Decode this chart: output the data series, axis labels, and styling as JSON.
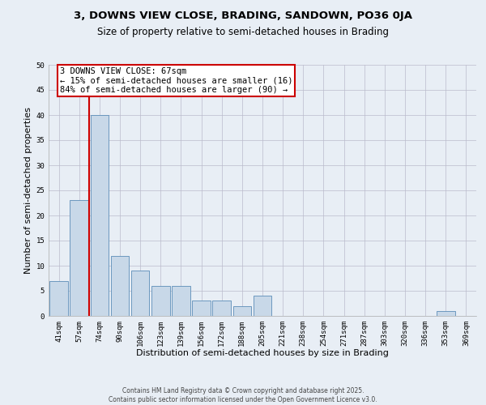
{
  "title1": "3, DOWNS VIEW CLOSE, BRADING, SANDOWN, PO36 0JA",
  "title2": "Size of property relative to semi-detached houses in Brading",
  "xlabel": "Distribution of semi-detached houses by size in Brading",
  "ylabel": "Number of semi-detached properties",
  "categories": [
    "41sqm",
    "57sqm",
    "74sqm",
    "90sqm",
    "106sqm",
    "123sqm",
    "139sqm",
    "156sqm",
    "172sqm",
    "188sqm",
    "205sqm",
    "221sqm",
    "238sqm",
    "254sqm",
    "271sqm",
    "287sqm",
    "303sqm",
    "320sqm",
    "336sqm",
    "353sqm",
    "369sqm"
  ],
  "values": [
    7,
    23,
    40,
    12,
    9,
    6,
    6,
    3,
    3,
    2,
    4,
    0,
    0,
    0,
    0,
    0,
    0,
    0,
    0,
    1,
    0
  ],
  "bar_color": "#c8d8e8",
  "bar_edge_color": "#5b8db8",
  "bar_width": 0.9,
  "red_line_x": 1.5,
  "annotation_title": "3 DOWNS VIEW CLOSE: 67sqm",
  "annotation_line1": "← 15% of semi-detached houses are smaller (16)",
  "annotation_line2": "84% of semi-detached houses are larger (90) →",
  "annotation_box_color": "#ffffff",
  "annotation_box_edge": "#cc0000",
  "red_line_color": "#cc0000",
  "ylim": [
    0,
    50
  ],
  "yticks": [
    0,
    5,
    10,
    15,
    20,
    25,
    30,
    35,
    40,
    45,
    50
  ],
  "grid_color": "#bbbbcc",
  "bg_color": "#e8eef5",
  "footer1": "Contains HM Land Registry data © Crown copyright and database right 2025.",
  "footer2": "Contains public sector information licensed under the Open Government Licence v3.0.",
  "title1_fontsize": 9.5,
  "title2_fontsize": 8.5,
  "tick_fontsize": 6.5,
  "label_fontsize": 8,
  "annotation_fontsize": 7.5,
  "footer_fontsize": 5.5
}
